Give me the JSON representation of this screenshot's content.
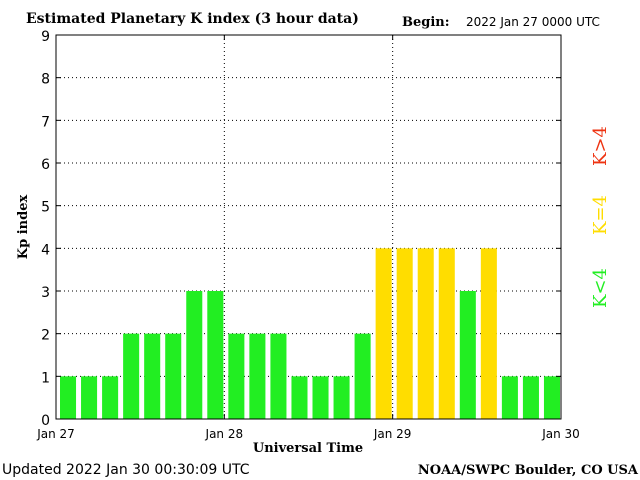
{
  "chart_data": {
    "type": "bar",
    "title": "Estimated Planetary K index (3 hour data)",
    "begin_label": "Begin:",
    "begin_value": "2022 Jan 27 0000 UTC",
    "xlabel": "Universal Time",
    "ylabel": "Kp index",
    "ylim": [
      0,
      9
    ],
    "yticks": [
      "0",
      "1",
      "2",
      "3",
      "4",
      "5",
      "6",
      "7",
      "8",
      "9"
    ],
    "xticks": [
      "Jan 27",
      "Jan 28",
      "Jan 29",
      "Jan 30"
    ],
    "grid": true,
    "values": [
      1,
      1,
      1,
      2,
      2,
      2,
      3,
      3,
      2,
      2,
      2,
      1,
      1,
      1,
      2,
      4,
      4,
      4,
      4,
      3,
      4,
      1,
      1,
      1
    ],
    "legend": [
      {
        "label": "K<4",
        "color": "#22ee22"
      },
      {
        "label": "K=4",
        "color": "#ffdd00"
      },
      {
        "label": "K>4",
        "color": "#ee3311"
      }
    ]
  },
  "footer": {
    "updated": "Updated 2022 Jan 30 00:30:09 UTC",
    "source": "NOAA/SWPC Boulder, CO USA"
  }
}
